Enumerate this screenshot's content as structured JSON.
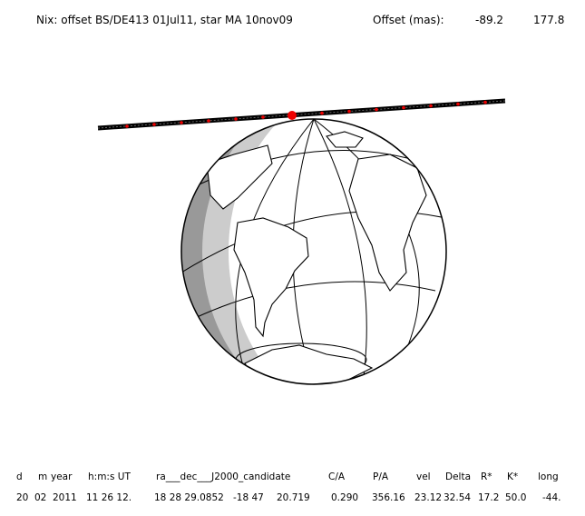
{
  "header": {
    "title": "Nix: offset BS/DE413 01Jul11, star MA 10nov09",
    "offset_label": "Offset (mas):",
    "offset_x": "-89.2",
    "offset_y": "177.8"
  },
  "table": {
    "columns": [
      "d",
      "m",
      "year",
      "h:m:s UT",
      "ra___dec___J2000_candidate",
      "C/A",
      "P/A",
      "vel",
      "Delta",
      "R*",
      "K*",
      "long"
    ],
    "row": [
      "20",
      "02",
      "2011",
      "11 26 12.",
      "18 28 29.0852",
      "-18 47",
      "20.719",
      "0.290",
      "356.16",
      "23.12",
      "32.54",
      "17.2",
      "50.0",
      "-44."
    ]
  }
}
